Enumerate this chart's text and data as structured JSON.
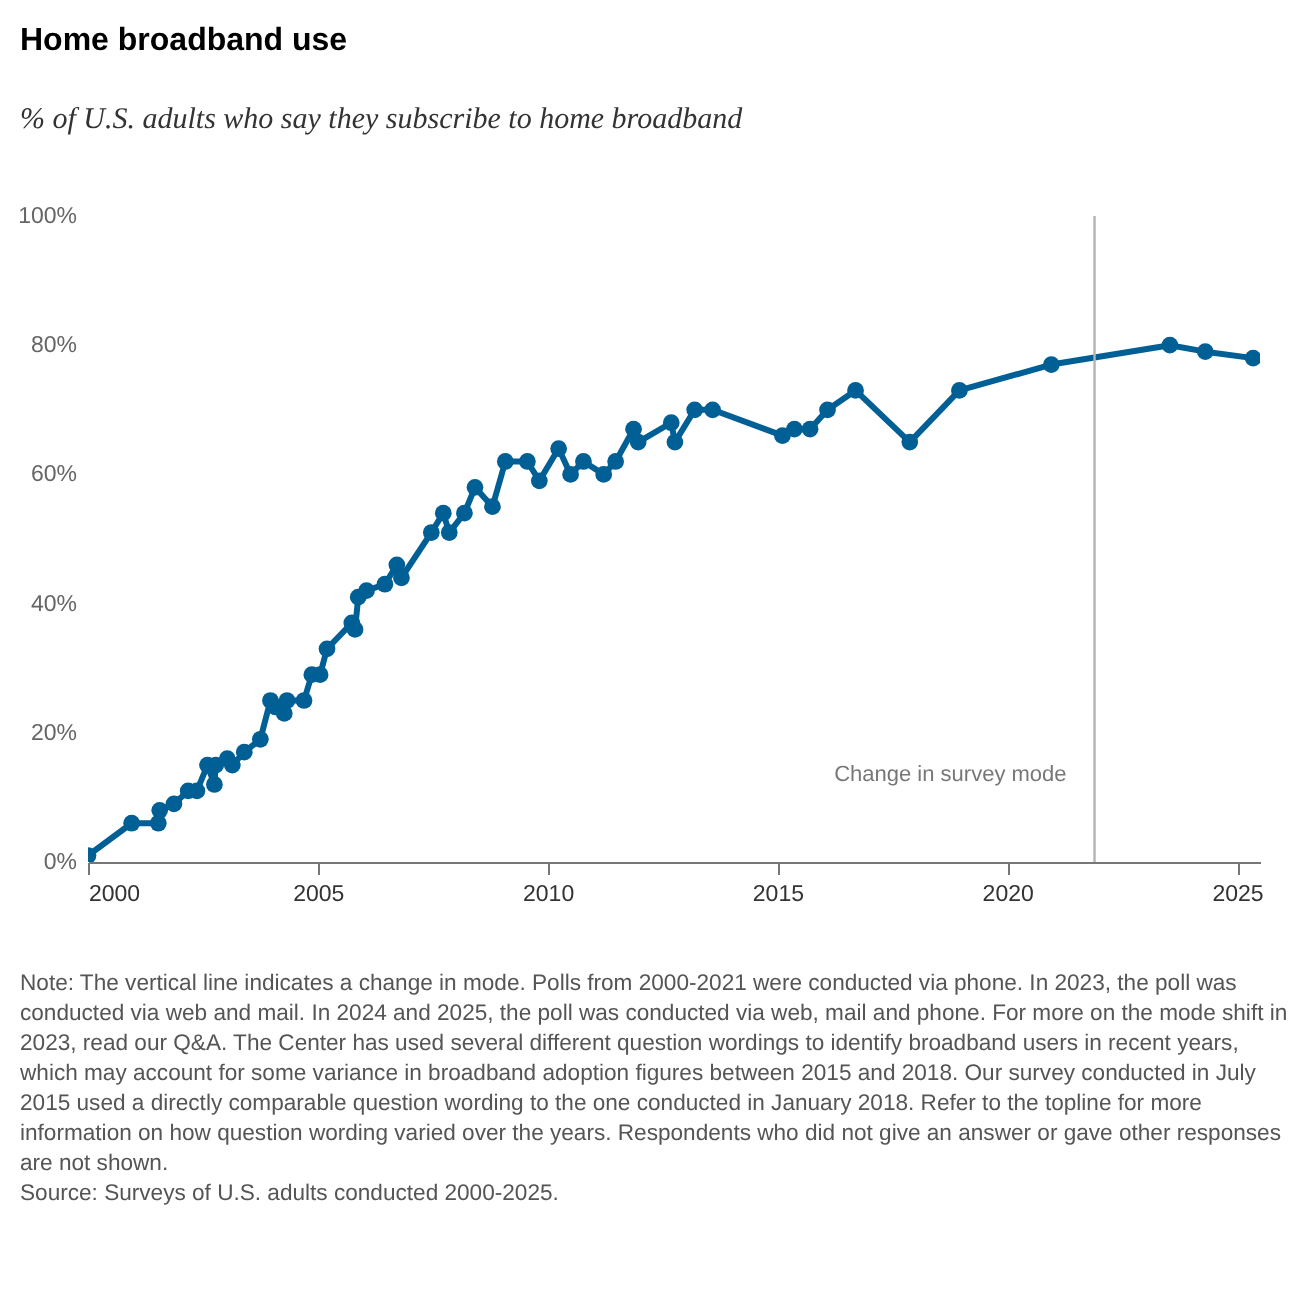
{
  "chart_data": {
    "type": "line",
    "title": "Home broadband use",
    "subtitle": "% of U.S. adults who say they subscribe to home broadband",
    "x": [
      2000.0,
      2000.95,
      2001.53,
      2001.56,
      2001.87,
      2002.18,
      2002.37,
      2002.6,
      2002.75,
      2002.78,
      2003.03,
      2003.14,
      2003.4,
      2003.75,
      2003.97,
      2004.08,
      2004.27,
      2004.33,
      2004.7,
      2004.87,
      2005.05,
      2005.2,
      2005.74,
      2005.81,
      2005.88,
      2006.06,
      2006.46,
      2006.72,
      2006.82,
      2007.47,
      2007.73,
      2007.86,
      2008.19,
      2008.42,
      2008.8,
      2009.08,
      2009.56,
      2009.82,
      2010.24,
      2010.5,
      2010.78,
      2011.22,
      2011.48,
      2011.87,
      2011.97,
      2012.69,
      2012.77,
      2013.2,
      2013.59,
      2015.11,
      2015.37,
      2015.71,
      2016.09,
      2016.7,
      2017.88,
      2018.96,
      2020.96,
      2023.54,
      2024.31,
      2025.35
    ],
    "values": [
      1,
      6,
      6,
      8,
      9,
      11,
      11,
      15,
      12,
      15,
      16,
      15,
      17,
      19,
      25,
      24,
      23,
      25,
      25,
      29,
      29,
      33,
      37,
      36,
      41,
      42,
      43,
      46,
      44,
      51,
      54,
      51,
      54,
      58,
      55,
      62,
      62,
      59,
      64,
      60,
      62,
      60,
      62,
      67,
      65,
      68,
      65,
      70,
      70,
      66,
      67,
      67,
      70,
      73,
      65,
      73,
      77,
      80,
      79,
      78
    ],
    "color": "#005f94",
    "marker": "circle",
    "xlim": [
      2000,
      2025.5
    ],
    "xticks": [
      2000,
      2005,
      2010,
      2015,
      2020,
      2025
    ],
    "ylim": [
      0,
      100
    ],
    "yticks": [
      {
        "value": 0,
        "label": "0%"
      },
      {
        "value": 20,
        "label": "20%"
      },
      {
        "value": 40,
        "label": "40%"
      },
      {
        "value": 60,
        "label": "60%"
      },
      {
        "value": 80,
        "label": "80%"
      },
      {
        "value": 100,
        "label": "100%"
      }
    ],
    "ref_lines": [
      {
        "axis": "x",
        "value": 2021.9,
        "label": "Change in survey mode",
        "color": "#b3b3b3"
      }
    ],
    "annotations": [
      "Note: The vertical line indicates a change in mode. Polls from 2000-2021 were conducted via phone. In 2023, the poll was conducted via web and mail. In 2024 and 2025, the poll was conducted via web, mail and phone. For more on the mode shift in 2023, read our Q&A. The Center has used several different question wordings to identify broadband users in recent years, which may account for some variance in broadband adoption figures between 2015 and 2018. Our survey conducted in July 2015 used a directly comparable question wording to the one conducted in January 2018. Refer to the topline for more information on how question wording varied over the years. Respondents who did not give an answer or gave other responses are not shown.",
      "Source: Surveys of U.S. adults conducted 2000-2025."
    ]
  }
}
